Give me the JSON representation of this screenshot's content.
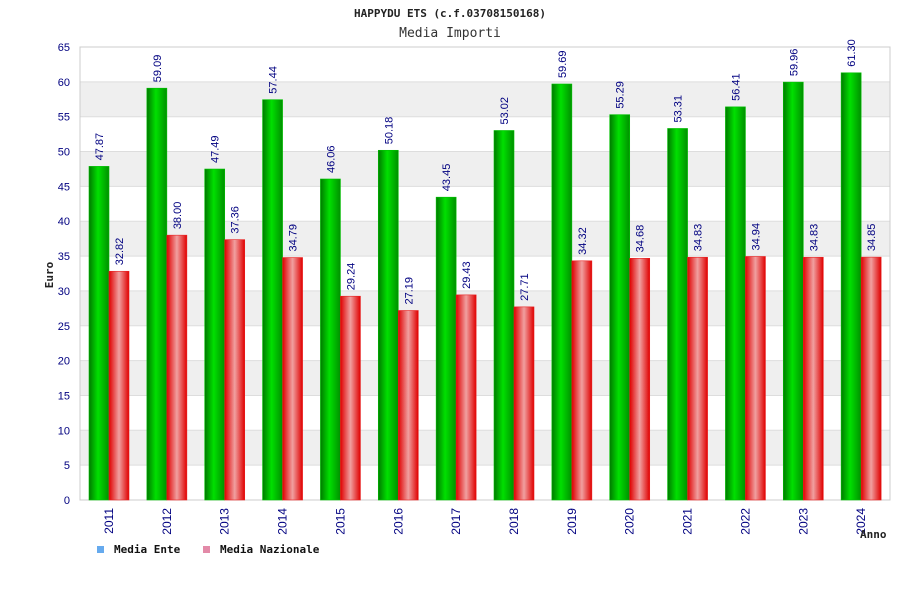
{
  "colors": {
    "ente": "#00c000",
    "nazionale": "#e82020",
    "legend_ente": "#66aaee",
    "legend_nazionale": "#e38aa8",
    "band": "#efefef",
    "text": "#000080"
  },
  "chart_data": {
    "type": "bar",
    "title": "HAPPYDU ETS (c.f.03708150168)",
    "subtitle": "Media Importi",
    "xlabel": "Anno",
    "ylabel": "Euro",
    "ylim": [
      0,
      65
    ],
    "yticks": [
      0,
      5,
      10,
      15,
      20,
      25,
      30,
      35,
      40,
      45,
      50,
      55,
      60,
      65
    ],
    "grid": true,
    "legend_position": "bottom-left",
    "categories": [
      "2011",
      "2012",
      "2013",
      "2014",
      "2015",
      "2016",
      "2017",
      "2018",
      "2019",
      "2020",
      "2021",
      "2022",
      "2023",
      "2024"
    ],
    "series": [
      {
        "name": "Media Ente",
        "values": [
          47.87,
          59.09,
          47.49,
          57.44,
          46.06,
          50.18,
          43.45,
          53.02,
          59.69,
          55.29,
          53.31,
          56.41,
          59.96,
          61.3
        ],
        "labels": [
          "47.87",
          "59.09",
          "47.49",
          "57.44",
          "46.06",
          "50.18",
          "43.45",
          "53.02",
          "59.69",
          "55.29",
          "53.31",
          "56.41",
          "59.96",
          "61.30"
        ]
      },
      {
        "name": "Media Nazionale",
        "values": [
          32.82,
          38.0,
          37.36,
          34.79,
          29.24,
          27.19,
          29.43,
          27.71,
          34.32,
          34.68,
          34.83,
          34.94,
          34.83,
          34.85
        ],
        "labels": [
          "32.82",
          "38.00",
          "37.36",
          "34.79",
          "29.24",
          "27.19",
          "29.43",
          "27.71",
          "34.32",
          "34.68",
          "34.83",
          "34.94",
          "34.83",
          "34.85"
        ]
      }
    ]
  }
}
